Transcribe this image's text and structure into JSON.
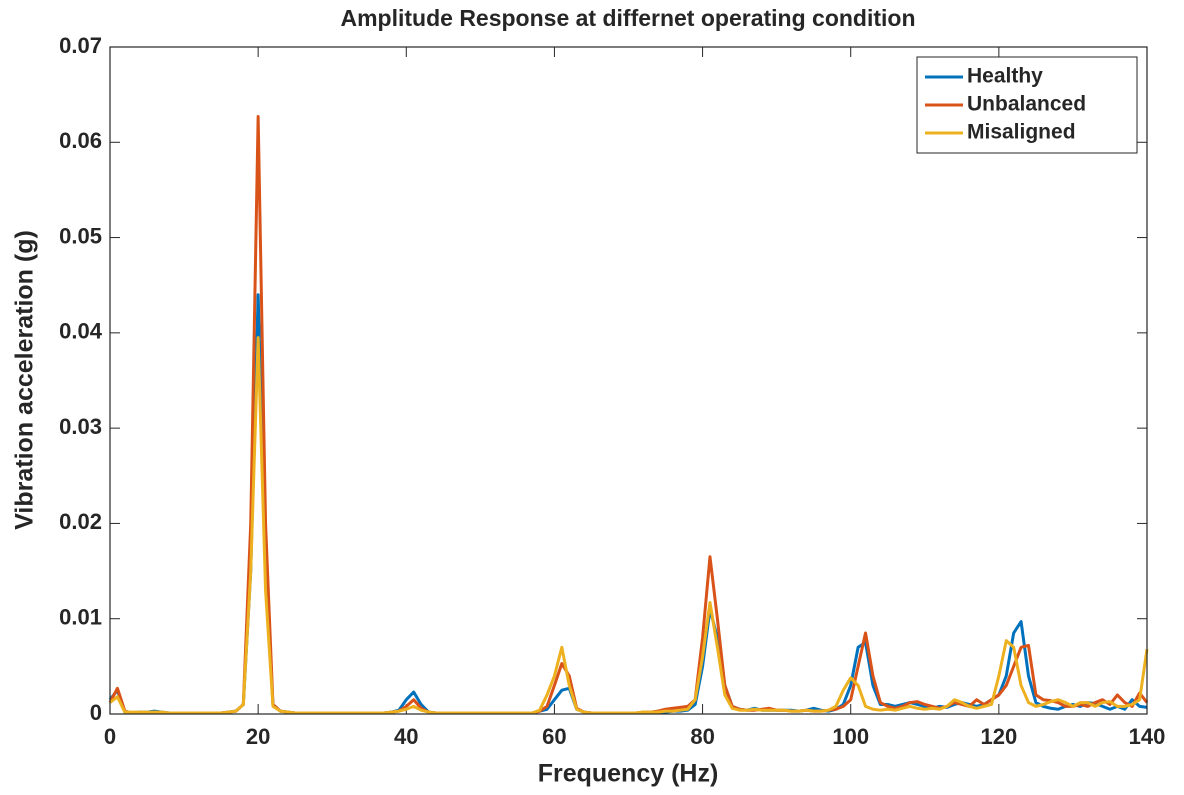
{
  "chart_data": {
    "type": "line",
    "title": "Amplitude Response at differnet operating condition",
    "x_label": "Frequency (Hz)",
    "y_label": "Vibration acceleration (g)",
    "x": [
      0,
      1,
      2,
      3,
      4,
      5,
      6,
      7,
      8,
      9,
      10,
      11,
      12,
      13,
      14,
      15,
      16,
      17,
      18,
      19,
      20,
      21,
      22,
      23,
      24,
      25,
      26,
      27,
      28,
      29,
      30,
      31,
      32,
      33,
      34,
      35,
      36,
      37,
      38,
      39,
      40,
      41,
      42,
      43,
      44,
      45,
      46,
      47,
      48,
      49,
      50,
      51,
      52,
      53,
      54,
      55,
      56,
      57,
      58,
      59,
      60,
      61,
      62,
      63,
      64,
      65,
      66,
      67,
      68,
      69,
      70,
      71,
      72,
      73,
      74,
      75,
      76,
      77,
      78,
      79,
      80,
      81,
      82,
      83,
      84,
      85,
      86,
      87,
      88,
      89,
      90,
      91,
      92,
      93,
      94,
      95,
      96,
      97,
      98,
      99,
      100,
      101,
      102,
      103,
      104,
      105,
      106,
      107,
      108,
      109,
      110,
      111,
      112,
      113,
      114,
      115,
      116,
      117,
      118,
      119,
      120,
      121,
      122,
      123,
      124,
      125,
      126,
      127,
      128,
      129,
      130,
      131,
      132,
      133,
      134,
      135,
      136,
      137,
      138,
      139,
      140
    ],
    "series": [
      {
        "name": "Healthy",
        "color": "#0072BD",
        "values": [
          0.0015,
          0.0025,
          0.0002,
          0.0001,
          0.0002,
          0.0002,
          0.0003,
          0.0002,
          0.0001,
          0.0001,
          0.0001,
          0.0001,
          0.0001,
          0.0001,
          0.0001,
          0.0001,
          0.0002,
          0.0003,
          0.001,
          0.015,
          0.044,
          0.015,
          0.001,
          0.0003,
          0.0002,
          0.0001,
          0.0001,
          0.0001,
          0.0001,
          0.0001,
          0.0001,
          0.0001,
          0.0001,
          0.0001,
          0.0001,
          0.0001,
          0.0001,
          0.0001,
          0.0002,
          0.0004,
          0.0015,
          0.0023,
          0.001,
          0.0002,
          0.0001,
          0.0001,
          0.0001,
          0.0001,
          0.0001,
          0.0001,
          0.0001,
          0.0001,
          0.0001,
          0.0001,
          0.0001,
          0.0001,
          0.0001,
          0.0001,
          0.0003,
          0.0005,
          0.0015,
          0.0025,
          0.0027,
          0.0005,
          0.0002,
          0.0001,
          0.0001,
          0.0001,
          0.0001,
          0.0001,
          0.0001,
          0.0001,
          0.0001,
          0.0002,
          0.0002,
          0.0002,
          0.0003,
          0.0003,
          0.0004,
          0.001,
          0.005,
          0.011,
          0.008,
          0.003,
          0.0008,
          0.0005,
          0.0004,
          0.0006,
          0.0004,
          0.0004,
          0.0004,
          0.0004,
          0.0004,
          0.0003,
          0.0004,
          0.0006,
          0.0004,
          0.0003,
          0.0005,
          0.001,
          0.003,
          0.007,
          0.0075,
          0.003,
          0.001,
          0.001,
          0.0008,
          0.001,
          0.0012,
          0.001,
          0.0008,
          0.0006,
          0.0008,
          0.0007,
          0.001,
          0.0012,
          0.001,
          0.0008,
          0.001,
          0.0015,
          0.002,
          0.004,
          0.0085,
          0.0097,
          0.004,
          0.0012,
          0.0008,
          0.0006,
          0.0005,
          0.0008,
          0.001,
          0.0008,
          0.0012,
          0.0011,
          0.0008,
          0.0005,
          0.0008,
          0.0005,
          0.0015,
          0.0008,
          0.0007
        ]
      },
      {
        "name": "Unbalanced",
        "color": "#D95319",
        "values": [
          0.0012,
          0.0027,
          0.0003,
          0.0001,
          0.0001,
          0.0001,
          0.0002,
          0.0001,
          0.0001,
          0.0001,
          0.0001,
          0.0001,
          0.0001,
          0.0001,
          0.0001,
          0.0001,
          0.0002,
          0.0003,
          0.001,
          0.02,
          0.0627,
          0.02,
          0.001,
          0.0003,
          0.0002,
          0.0001,
          0.0001,
          0.0001,
          0.0001,
          0.0001,
          0.0001,
          0.0001,
          0.0001,
          0.0001,
          0.0001,
          0.0001,
          0.0001,
          0.0001,
          0.0002,
          0.0003,
          0.0008,
          0.0015,
          0.0006,
          0.0002,
          0.0001,
          0.0001,
          0.0001,
          0.0001,
          0.0001,
          0.0001,
          0.0001,
          0.0001,
          0.0001,
          0.0001,
          0.0001,
          0.0001,
          0.0001,
          0.0001,
          0.0003,
          0.0008,
          0.003,
          0.0053,
          0.004,
          0.0006,
          0.0002,
          0.0001,
          0.0001,
          0.0001,
          0.0001,
          0.0001,
          0.0001,
          0.0001,
          0.0002,
          0.0002,
          0.0003,
          0.0005,
          0.0006,
          0.0007,
          0.0008,
          0.0015,
          0.008,
          0.0165,
          0.01,
          0.003,
          0.0008,
          0.0005,
          0.0004,
          0.0004,
          0.0005,
          0.0006,
          0.0004,
          0.0004,
          0.0003,
          0.0003,
          0.0004,
          0.0003,
          0.0003,
          0.0004,
          0.0005,
          0.0008,
          0.0015,
          0.005,
          0.0085,
          0.004,
          0.0012,
          0.0008,
          0.0006,
          0.0008,
          0.0012,
          0.0013,
          0.001,
          0.0008,
          0.0006,
          0.0008,
          0.0012,
          0.001,
          0.0008,
          0.0015,
          0.001,
          0.0015,
          0.002,
          0.003,
          0.005,
          0.007,
          0.0072,
          0.002,
          0.0015,
          0.0014,
          0.0012,
          0.0008,
          0.0008,
          0.001,
          0.0008,
          0.0012,
          0.0015,
          0.001,
          0.002,
          0.0012,
          0.0008,
          0.0022,
          0.0012
        ]
      },
      {
        "name": "Misaligned",
        "color": "#EDB120",
        "values": [
          0.0012,
          0.0018,
          0.0002,
          0.0002,
          0.0002,
          0.0002,
          0.0002,
          0.0002,
          0.0001,
          0.0001,
          0.0001,
          0.0001,
          0.0001,
          0.0001,
          0.0001,
          0.0001,
          0.0002,
          0.0003,
          0.001,
          0.015,
          0.0395,
          0.013,
          0.0008,
          0.0003,
          0.0002,
          0.0001,
          0.0001,
          0.0001,
          0.0001,
          0.0001,
          0.0001,
          0.0001,
          0.0001,
          0.0001,
          0.0001,
          0.0001,
          0.0001,
          0.0001,
          0.0002,
          0.0003,
          0.0005,
          0.0008,
          0.0004,
          0.0002,
          0.0001,
          0.0001,
          0.0001,
          0.0001,
          0.0001,
          0.0001,
          0.0001,
          0.0001,
          0.0001,
          0.0001,
          0.0001,
          0.0001,
          0.0001,
          0.0001,
          0.0004,
          0.002,
          0.004,
          0.007,
          0.003,
          0.0005,
          0.0002,
          0.0001,
          0.0001,
          0.0001,
          0.0001,
          0.0001,
          0.0001,
          0.0001,
          0.0002,
          0.0002,
          0.0002,
          0.0003,
          0.0003,
          0.0004,
          0.0005,
          0.0015,
          0.006,
          0.0117,
          0.007,
          0.002,
          0.0006,
          0.0004,
          0.0004,
          0.0005,
          0.0004,
          0.0004,
          0.0004,
          0.0004,
          0.0003,
          0.0003,
          0.0004,
          0.0003,
          0.0003,
          0.0004,
          0.0008,
          0.0025,
          0.0038,
          0.003,
          0.0008,
          0.0005,
          0.0004,
          0.0005,
          0.0004,
          0.0006,
          0.0008,
          0.0006,
          0.0005,
          0.0006,
          0.0005,
          0.0008,
          0.0015,
          0.0012,
          0.0008,
          0.0006,
          0.0008,
          0.001,
          0.004,
          0.0077,
          0.007,
          0.003,
          0.0012,
          0.0008,
          0.001,
          0.0013,
          0.0015,
          0.0012,
          0.0008,
          0.0012,
          0.0012,
          0.0008,
          0.0012,
          0.0013,
          0.0008,
          0.0008,
          0.001,
          0.0015,
          0.0068
        ]
      }
    ],
    "xlim": [
      0,
      140
    ],
    "xticks": [
      0,
      20,
      40,
      60,
      80,
      100,
      120,
      140
    ],
    "ylim": [
      0,
      0.07
    ],
    "yticks": [
      0,
      0.01,
      0.02,
      0.03,
      0.04,
      0.05,
      0.06,
      0.07
    ],
    "legend": "northeast"
  }
}
